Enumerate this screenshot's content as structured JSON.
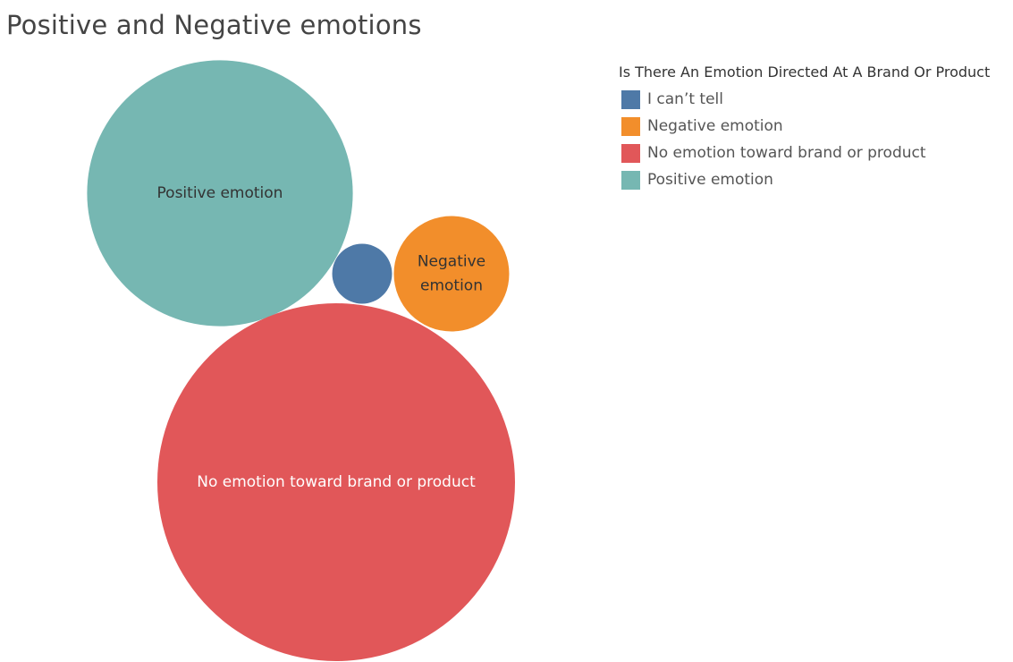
{
  "chart_data": {
    "type": "bubble",
    "title": "Positive and Negative emotions",
    "legend": {
      "title": "Is There An Emotion Directed At A Brand Or Product",
      "placement": "top-right",
      "entries": [
        {
          "label": "I can’t tell",
          "color": "#4e79a7"
        },
        {
          "label": "Negative emotion",
          "color": "#f28e2b"
        },
        {
          "label": "No emotion toward brand or product",
          "color": "#e15759"
        },
        {
          "label": "Positive emotion",
          "color": "#76b7b2"
        }
      ]
    },
    "bubbles": [
      {
        "category": "Positive emotion",
        "label_lines": [
          "Positive emotion"
        ],
        "color": "#76b7b2",
        "label_color": "#333333",
        "relative_size": 0.552
      },
      {
        "category": "I can’t tell",
        "label_lines": [],
        "color": "#4e79a7",
        "label_color": "#ffffff",
        "relative_size": 0.028
      },
      {
        "category": "Negative emotion",
        "label_lines": [
          "Negative",
          "emotion"
        ],
        "color": "#f28e2b",
        "label_color": "#333333",
        "relative_size": 0.104
      },
      {
        "category": "No emotion toward brand or product",
        "label_lines": [
          "No emotion toward brand or product"
        ],
        "color": "#e15759",
        "label_color": "#ffffff",
        "relative_size": 1.0
      }
    ]
  }
}
